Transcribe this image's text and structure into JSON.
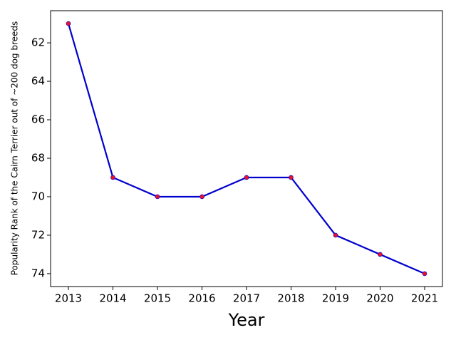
{
  "chart_data": {
    "type": "line",
    "x_label": "Year",
    "y_label": "Popularity Rank of the Cairn Terrier out of ~200 dog breeds",
    "x": [
      2013,
      2014,
      2015,
      2016,
      2017,
      2018,
      2019,
      2020,
      2021
    ],
    "series": [
      {
        "color": "#0000cd",
        "marker_color": "#e8102a",
        "values": [
          61,
          69,
          70,
          70,
          69,
          69,
          72,
          73,
          74
        ]
      }
    ],
    "xlim": [
      2012.6,
      2021.4
    ],
    "xticks": [
      2013,
      2014,
      2015,
      2016,
      2017,
      2018,
      2019,
      2020,
      2021
    ],
    "ylim": [
      74.67,
      60.33
    ],
    "yticks": [
      62,
      64,
      66,
      68,
      70,
      72,
      74
    ],
    "grid": false
  }
}
